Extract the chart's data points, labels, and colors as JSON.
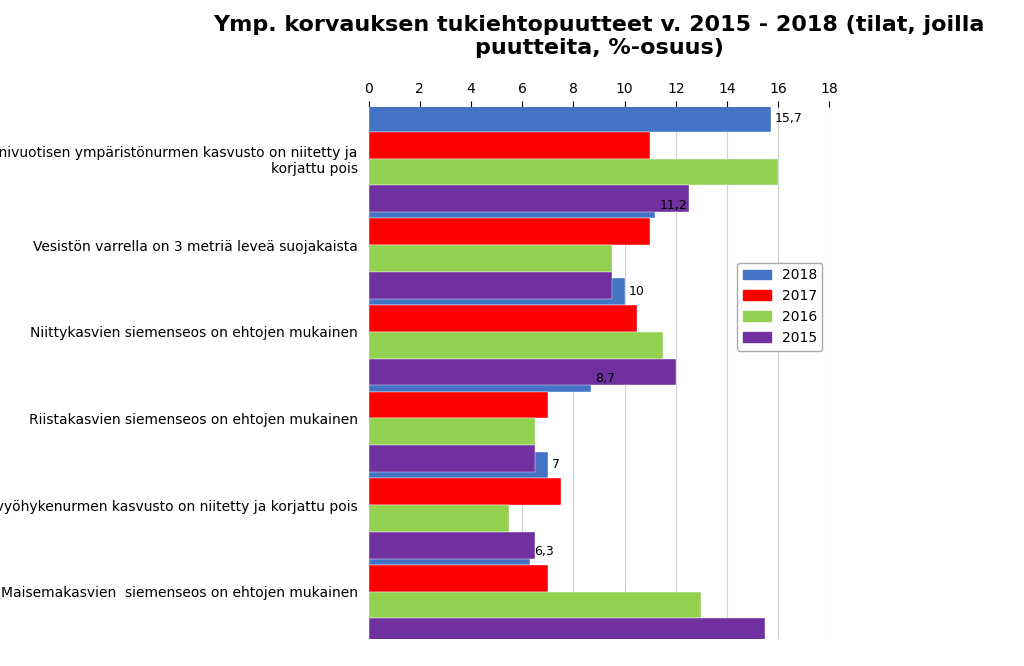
{
  "title": "Ymp. korvauksen tukiehtopuutteet v. 2015 - 2018 (tilat, joilla\npuutteita, %-osuus)",
  "categories": [
    "Monivuotisen ympäristönurmen kasvusto on niitetty ja\nkorjattu pois",
    "Vesistön varrella on 3 metriä leveä suojakaista",
    "Niittykasvien siemenseos on ehtojen mukainen",
    "Riistakasvien siemenseos on ehtojen mukainen",
    "Suojavyöhykenurmen kasvusto on niitetty ja korjattu pois",
    "Maisemakasvien  siemenseos on ehtojen mukainen"
  ],
  "series": {
    "2018": [
      15.7,
      11.2,
      10.0,
      8.7,
      7.0,
      6.3
    ],
    "2017": [
      11.0,
      11.0,
      10.5,
      7.0,
      7.5,
      7.0
    ],
    "2016": [
      16.0,
      9.5,
      11.5,
      6.5,
      5.5,
      13.0
    ],
    "2015": [
      12.5,
      9.5,
      12.0,
      6.5,
      6.5,
      15.5
    ]
  },
  "colors": {
    "2018": "#4472C4",
    "2017": "#FF0000",
    "2016": "#92D050",
    "2015": "#7030A0"
  },
  "xlim": [
    0,
    18
  ],
  "xticks": [
    0,
    2,
    4,
    6,
    8,
    10,
    12,
    14,
    16,
    18
  ],
  "background_color": "#FFFFFF",
  "grid_color": "#D0D0D0",
  "title_fontsize": 16,
  "label_fontsize": 10,
  "tick_fontsize": 10,
  "legend_fontsize": 10,
  "annotation_labels": [
    "15,7",
    "11,2",
    "10",
    "8,7",
    "7",
    "6,3"
  ]
}
